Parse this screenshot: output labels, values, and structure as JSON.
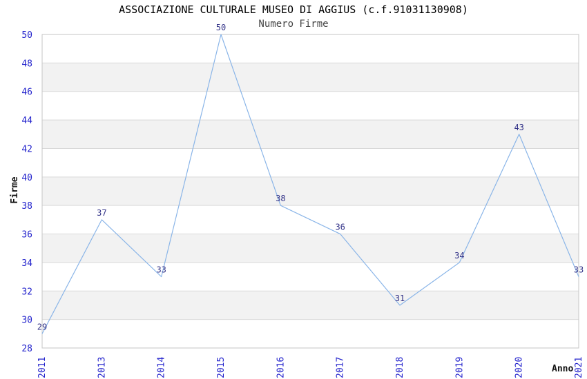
{
  "chart_data": {
    "type": "line",
    "title": "ASSOCIAZIONE CULTURALE MUSEO DI AGGIUS (c.f.91031130908)",
    "subtitle": "Numero Firme",
    "xlabel": "Anno",
    "ylabel": "Firme",
    "categories": [
      "2011",
      "2013",
      "2014",
      "2015",
      "2016",
      "2017",
      "2018",
      "2019",
      "2020",
      "2021"
    ],
    "series": [
      {
        "name": "Numero Firme",
        "values": [
          29,
          37,
          33,
          50,
          38,
          36,
          31,
          34,
          43,
          33
        ]
      }
    ],
    "ylim": [
      28,
      50
    ],
    "ytick_step": 2,
    "grid": "horizontal-only",
    "banding": "alternating gray bands every 2 units starting at 30-32",
    "legend": "none",
    "data_labels": true,
    "colors": {
      "line": "#8ab5e8",
      "tick_label": "#2222cc",
      "data_label": "#333388",
      "band": "#f2f2f2",
      "gridline": "#d9d9d9",
      "plot_border": "#c6c6c6",
      "title": "#000000",
      "subtitle": "#444444",
      "axis_title": "#111111",
      "background": "#ffffff"
    }
  }
}
